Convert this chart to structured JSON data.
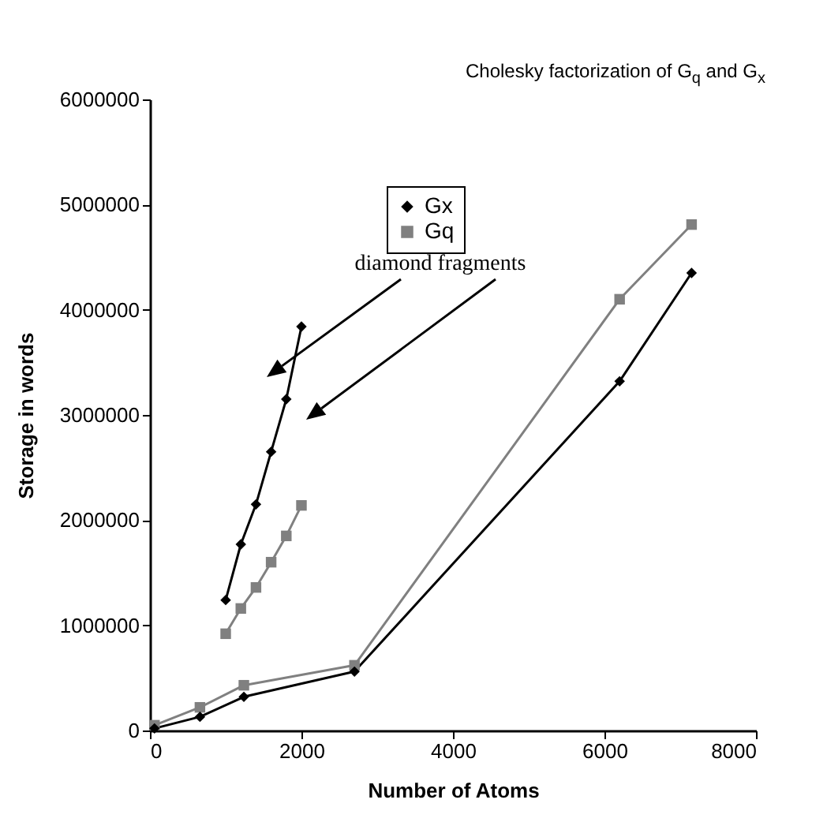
{
  "chart_data": {
    "type": "line",
    "title": "Cholesky factorization of G$_{q}$ and G$_{x}$",
    "xlabel": "Number of Atoms",
    "ylabel": "Storage in words",
    "xlim": [
      0,
      8000
    ],
    "xticks": [
      0,
      2000,
      4000,
      6000,
      8000
    ],
    "ylim": [
      0,
      6000000
    ],
    "yticks": [
      0,
      1000000,
      2000000,
      3000000,
      4000000,
      5000000,
      6000000
    ],
    "grid": false,
    "legend": "top",
    "annotations": [
      "diamond fragments"
    ],
    "series": [
      {
        "name": "Gx",
        "color": "#000000",
        "marker": "diamond",
        "x": [
          60,
          660,
          1240,
          2700,
          6200,
          7150
        ],
        "values": [
          20000,
          130000,
          320000,
          560000,
          3320000,
          4350000
        ]
      },
      {
        "name": "Gq",
        "color": "#808080",
        "marker": "square",
        "x": [
          60,
          660,
          1240,
          2700,
          6200,
          7150
        ],
        "values": [
          50000,
          220000,
          430000,
          620000,
          4100000,
          4810000
        ]
      },
      {
        "color": "#000000",
        "marker": "diamond",
        "x": [
          1000,
          1200,
          1400,
          1600,
          1800,
          2000
        ],
        "values": [
          1240000,
          1770000,
          2150000,
          2650000,
          3150000,
          3840000
        ]
      },
      {
        "color": "#808080",
        "marker": "square",
        "x": [
          1000,
          1200,
          1400,
          1600,
          1800,
          2000
        ],
        "values": [
          920000,
          1160000,
          1360000,
          1600000,
          1850000,
          2140000
        ]
      }
    ]
  }
}
